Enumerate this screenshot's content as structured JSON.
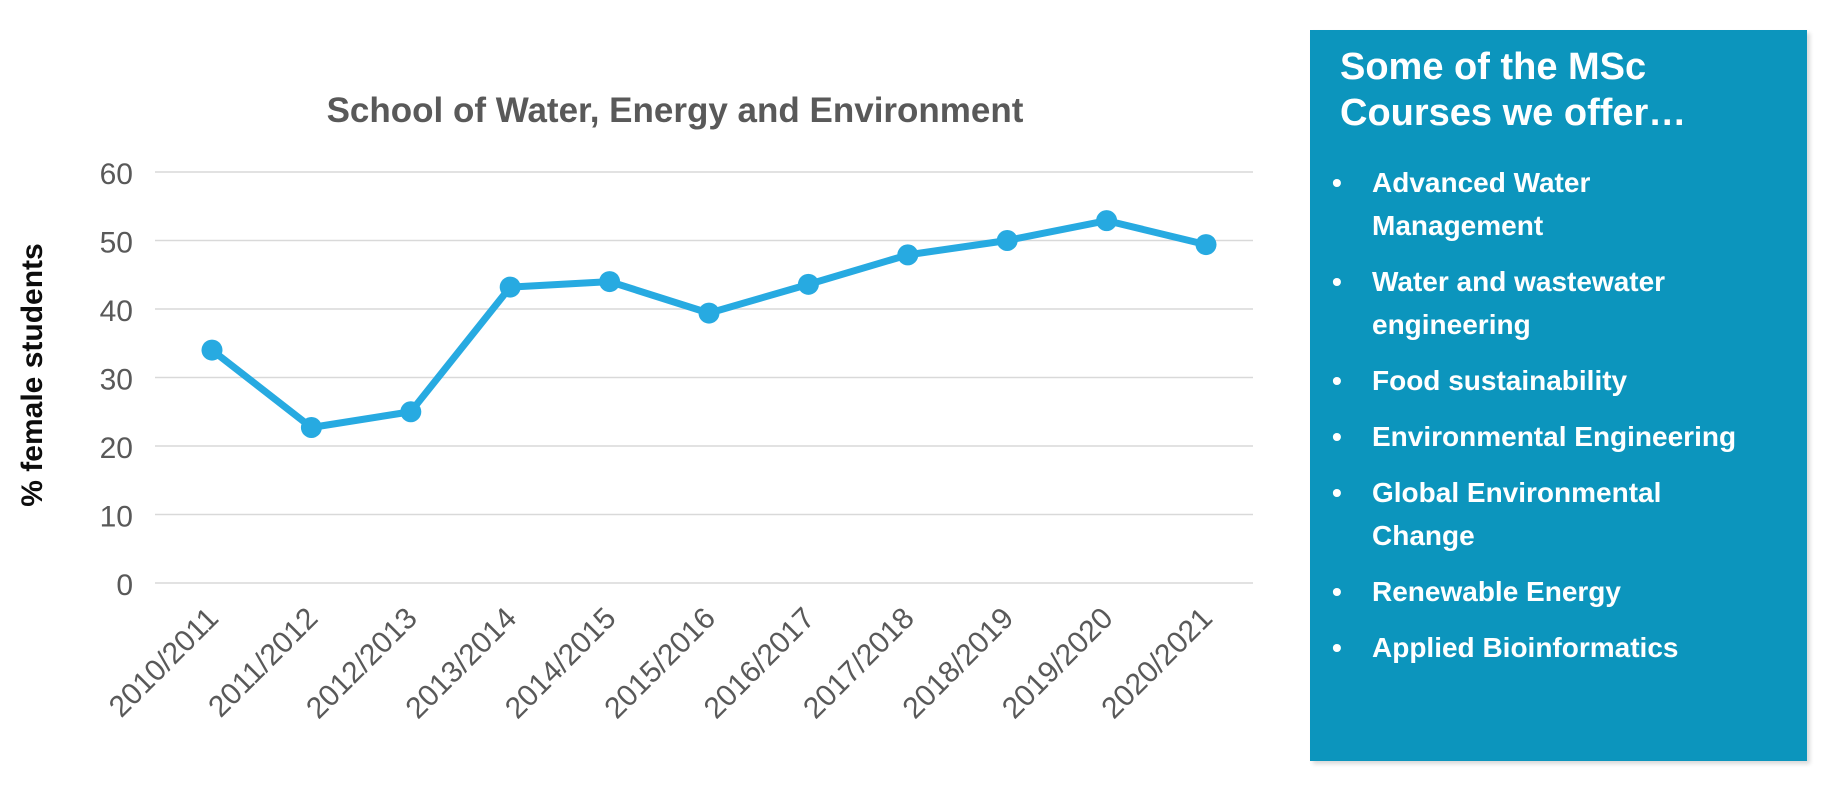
{
  "chart_data": {
    "type": "line",
    "title": "School of Water, Energy and Environment",
    "xlabel": "",
    "ylabel": "% female students",
    "categories": [
      "2010/2011",
      "2011/2012",
      "2012/2013",
      "2013/2014",
      "2014/2015",
      "2015/2016",
      "2016/2017",
      "2017/2018",
      "2018/2019",
      "2019/2020",
      "2020/2021"
    ],
    "values": [
      34,
      22.7,
      25,
      43.2,
      44,
      39.4,
      43.6,
      47.9,
      50,
      52.9,
      49.4
    ],
    "ylim": [
      0,
      60
    ],
    "yticks": [
      0,
      10,
      20,
      30,
      40,
      50,
      60
    ],
    "grid": true,
    "legend": "none",
    "marker": "circle"
  },
  "colors": {
    "line": "#27AAE1",
    "grid": "#D9D9D9",
    "axis_text": "#595959",
    "title_text": "#595959",
    "ylabel_text": "#0D0D0D",
    "panel_bg": "#0C95BD",
    "panel_text": "#FFFFFF"
  },
  "panel": {
    "title": "Some of the MSc Courses we offer…",
    "bullet_icon": "•",
    "bullets": [
      "Advanced Water\nManagement",
      "Water and wastewater\nengineering",
      "Food sustainability",
      "Environmental Engineering",
      "Global Environmental\nChange",
      "Renewable Energy",
      "Applied Bioinformatics"
    ]
  }
}
